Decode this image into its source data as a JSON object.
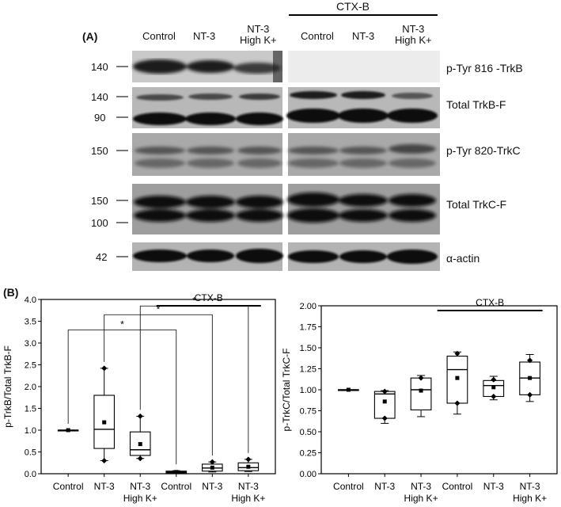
{
  "panel_a": {
    "letter": "(A)",
    "ctx_label": "CTX-B",
    "lanes": [
      "Control",
      "NT-3",
      "NT-3\nHigh K+",
      "Control",
      "NT-3",
      "NT-3\nHigh K+"
    ],
    "rows": [
      {
        "name": "p-Tyr 816 -TrkB",
        "markers": [
          "140"
        ]
      },
      {
        "name": "Total TrkB-F",
        "markers": [
          "140",
          "90"
        ]
      },
      {
        "name": "p-Tyr 820-TrkC",
        "markers": [
          "150"
        ]
      },
      {
        "name": "Total TrkC-F",
        "markers": [
          "150",
          "100"
        ]
      },
      {
        "name": "α-actin",
        "markers": [
          "42"
        ]
      }
    ]
  },
  "panel_b": {
    "letter": "(B)",
    "ctx_label": "CTX-B",
    "significance_mark": "*"
  },
  "chart_data": [
    {
      "type": "box",
      "ylabel": "p-TrkB/Total TrkB-F",
      "ylim": [
        0,
        4.0
      ],
      "yticks": [
        "0.0",
        "0.5",
        "1.0",
        "1.5",
        "2.0",
        "2.5",
        "3.0",
        "3.5",
        "4.0"
      ],
      "categories": [
        "Control",
        "NT-3",
        "NT-3\nHigh K+",
        "Control",
        "NT-3",
        "NT-3\nHigh K+"
      ],
      "boxes": [
        {
          "q1": 1.0,
          "median": 1.0,
          "q3": 1.0,
          "min": 1.0,
          "max": 1.0,
          "mean": 1.0,
          "points": []
        },
        {
          "q1": 0.58,
          "median": 1.02,
          "q3": 1.8,
          "min": 0.3,
          "max": 2.42,
          "mean": 1.18,
          "points": [
            0.3,
            2.42
          ]
        },
        {
          "q1": 0.42,
          "median": 0.55,
          "q3": 0.96,
          "min": 0.35,
          "max": 1.32,
          "mean": 0.68,
          "points": [
            0.35,
            1.32
          ]
        },
        {
          "q1": 0.02,
          "median": 0.04,
          "q3": 0.06,
          "min": 0.01,
          "max": 0.07,
          "mean": 0.04,
          "points": []
        },
        {
          "q1": 0.06,
          "median": 0.13,
          "q3": 0.22,
          "min": 0.04,
          "max": 0.27,
          "mean": 0.14,
          "points": [
            0.27
          ]
        },
        {
          "q1": 0.07,
          "median": 0.14,
          "q3": 0.25,
          "min": 0.05,
          "max": 0.33,
          "mean": 0.16,
          "points": [
            0.33
          ]
        }
      ],
      "significance": [
        {
          "from": 0,
          "to": 3,
          "y": 3.3,
          "label": "*"
        },
        {
          "from": 1,
          "to": 4,
          "y": 3.65,
          "label": "*"
        },
        {
          "from": 2,
          "to": 5,
          "y": 3.85,
          "label": "*"
        }
      ]
    },
    {
      "type": "box",
      "ylabel": "p-TrkC/Total TrkC-F",
      "ylim": [
        0,
        2.0
      ],
      "yticks": [
        "0.00",
        "0.25",
        "0.50",
        "0.75",
        "1.00",
        "1.25",
        "1.50",
        "1.75",
        "2.00"
      ],
      "categories": [
        "Control",
        "NT-3",
        "NT-3\nHigh K+",
        "Control",
        "NT-3",
        "NT-3\nHigh K+"
      ],
      "boxes": [
        {
          "q1": 1.0,
          "median": 1.0,
          "q3": 1.0,
          "min": 1.0,
          "max": 1.0,
          "mean": 1.0,
          "points": []
        },
        {
          "q1": 0.66,
          "median": 0.95,
          "q3": 0.98,
          "min": 0.6,
          "max": 0.99,
          "mean": 0.86,
          "points": [
            0.66,
            0.98
          ]
        },
        {
          "q1": 0.76,
          "median": 1.0,
          "q3": 1.14,
          "min": 0.68,
          "max": 1.17,
          "mean": 0.99,
          "points": [
            1.14
          ]
        },
        {
          "q1": 0.84,
          "median": 1.24,
          "q3": 1.4,
          "min": 0.71,
          "max": 1.45,
          "mean": 1.14,
          "points": [
            0.84,
            1.43
          ]
        },
        {
          "q1": 0.92,
          "median": 1.05,
          "q3": 1.11,
          "min": 0.88,
          "max": 1.16,
          "mean": 1.03,
          "points": [
            0.92,
            1.12
          ]
        },
        {
          "q1": 0.94,
          "median": 1.14,
          "q3": 1.33,
          "min": 0.86,
          "max": 1.42,
          "mean": 1.14,
          "points": [
            0.94,
            1.35
          ]
        }
      ]
    }
  ]
}
